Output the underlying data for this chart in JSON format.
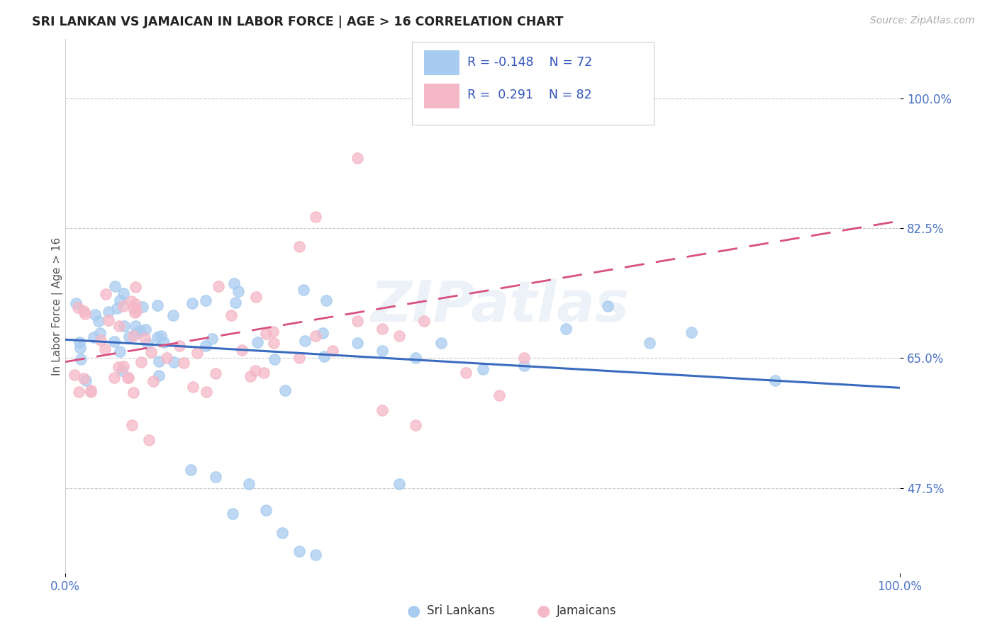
{
  "title": "SRI LANKAN VS JAMAICAN IN LABOR FORCE | AGE > 16 CORRELATION CHART",
  "source_text": "Source: ZipAtlas.com",
  "ylabel": "In Labor Force | Age > 16",
  "yaxis_labels": [
    "47.5%",
    "65.0%",
    "82.5%",
    "100.0%"
  ],
  "yaxis_values": [
    0.475,
    0.65,
    0.825,
    1.0
  ],
  "xaxis_range": [
    0.0,
    1.0
  ],
  "yaxis_range": [
    0.36,
    1.08
  ],
  "color_sri": "#a8ccf0",
  "color_jamaican": "#f5b8c8",
  "color_trend_sri": "#3b6bbf",
  "color_trend_jamaican": "#d85080",
  "footer_sri": "Sri Lankans",
  "footer_jamaican": "Jamaicans",
  "legend_text1": "R = -0.148   N = 72",
  "legend_text2": "R =  0.291   N = 82"
}
